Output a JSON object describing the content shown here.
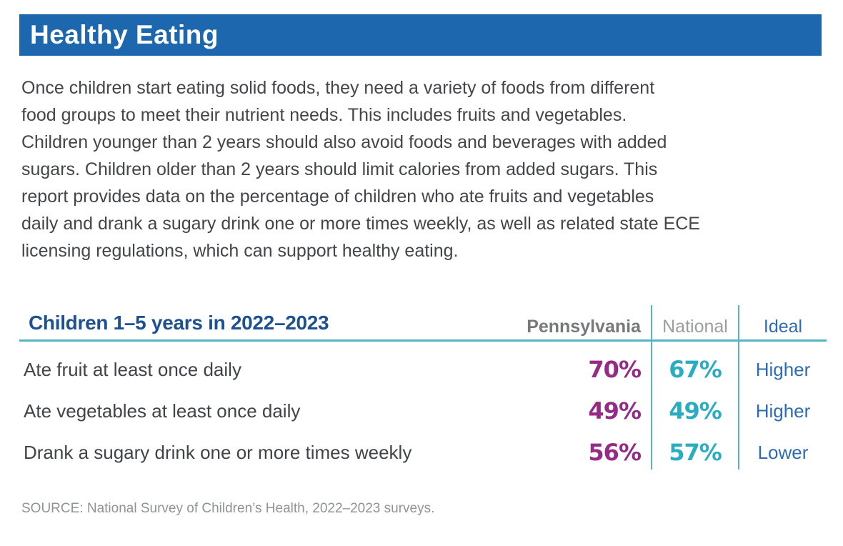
{
  "header": {
    "title": "Healthy Eating",
    "bar_color": "#1c67ae"
  },
  "intro": {
    "lines": [
      "Once children start eating solid foods, they need a variety of foods from different",
      "food groups to meet their nutrient needs. This includes fruits and vegetables.",
      "Children younger than 2 years should also avoid foods and beverages with added",
      "sugars. Children older than 2 years should limit calories from added sugars. This",
      "report provides data on the percentage of children who ate fruits and vegetables",
      "daily and drank a sugary drink one or more times weekly, as well as related state ECE",
      "licensing regulations, which can support healthy eating."
    ]
  },
  "table": {
    "title": "Children 1–5 years in 2022–2023",
    "columns": {
      "pennsylvania": "Pennsylvania",
      "national": "National",
      "ideal": "Ideal"
    },
    "rows": [
      {
        "label": "Ate fruit at least once daily",
        "pennsylvania": "70%",
        "national": "67%",
        "ideal": "Higher"
      },
      {
        "label": "Ate vegetables at least once daily",
        "pennsylvania": "49%",
        "national": "49%",
        "ideal": "Higher"
      },
      {
        "label": "Drank a sugary drink one or more times weekly",
        "pennsylvania": "56%",
        "national": "57%",
        "ideal": "Lower"
      }
    ]
  },
  "source": {
    "text": "SOURCE: National Survey of Children’s Health, 2022–2023 surveys."
  },
  "colors": {
    "header_bar": "#1c67ae",
    "table_title": "#1d5191",
    "pennsylvania_value": "#962a87",
    "national_value": "#2aadc2",
    "ideal_text": "#2e6cb2",
    "divider_teal": "#54b3c4",
    "body_text": "#43454a",
    "pennsylvania_header": "#77787a",
    "national_header": "#9c9da0",
    "source_text": "#8f9397"
  }
}
